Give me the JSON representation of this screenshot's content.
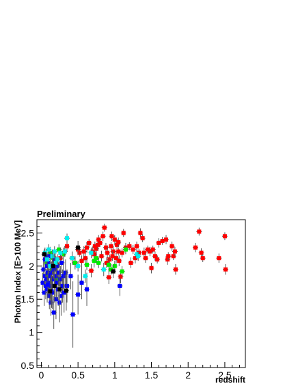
{
  "chart_data": {
    "type": "scatter",
    "title": "Preliminary",
    "xlabel": "redshift",
    "ylabel": "Photon Index [E>100 MeV]",
    "xlim": [
      -0.06,
      2.78
    ],
    "ylim": [
      0.47,
      2.7
    ],
    "x_ticks": [
      "0",
      "0.5",
      "1",
      "1.5",
      "2",
      "2.5"
    ],
    "y_ticks": [
      "0.5",
      "1",
      "1.5",
      "2",
      "2.5"
    ],
    "grid": false,
    "legend": "none",
    "colors": {
      "red": "#ff0000",
      "green": "#00ee00",
      "blue": "#0000ff",
      "cyan": "#00eeee",
      "black": "#000000"
    },
    "series": [
      {
        "color": "red",
        "points": [
          [
            0.22,
            2.02,
            0.06
          ],
          [
            0.26,
            2.12,
            0.07
          ],
          [
            0.32,
            2.22,
            0.08
          ],
          [
            0.35,
            2.3,
            0.08
          ],
          [
            0.42,
            2.12,
            0.1
          ],
          [
            0.46,
            2.05,
            0.08
          ],
          [
            0.5,
            2.25,
            0.07
          ],
          [
            0.52,
            2.2,
            0.06
          ],
          [
            0.55,
            2.08,
            0.08
          ],
          [
            0.6,
            2.12,
            0.07
          ],
          [
            0.62,
            2.28,
            0.08
          ],
          [
            0.65,
            2.35,
            0.06
          ],
          [
            0.68,
            1.93,
            0.1
          ],
          [
            0.7,
            2.22,
            0.07
          ],
          [
            0.72,
            2.18,
            0.06
          ],
          [
            0.73,
            2.3,
            0.07
          ],
          [
            0.75,
            2.26,
            0.08
          ],
          [
            0.77,
            2.32,
            0.08
          ],
          [
            0.78,
            2.4,
            0.07
          ],
          [
            0.8,
            2.35,
            0.06
          ],
          [
            0.82,
            2.15,
            0.08
          ],
          [
            0.84,
            2.45,
            0.07
          ],
          [
            0.86,
            2.58,
            0.06
          ],
          [
            0.88,
            2.28,
            0.07
          ],
          [
            0.89,
            2.05,
            0.08
          ],
          [
            0.9,
            2.2,
            0.08
          ],
          [
            0.92,
            1.83,
            0.1
          ],
          [
            0.93,
            2.1,
            0.07
          ],
          [
            0.95,
            2.3,
            0.06
          ],
          [
            0.96,
            2.45,
            0.07
          ],
          [
            0.98,
            2.22,
            0.08
          ],
          [
            1.0,
            2.4,
            0.07
          ],
          [
            1.02,
            2.12,
            0.08
          ],
          [
            1.03,
            2.32,
            0.06
          ],
          [
            1.05,
            2.36,
            0.07
          ],
          [
            1.06,
            2.08,
            0.08
          ],
          [
            1.08,
            1.84,
            0.1
          ],
          [
            1.1,
            2.2,
            0.07
          ],
          [
            1.12,
            2.5,
            0.06
          ],
          [
            1.15,
            2.28,
            0.07
          ],
          [
            1.2,
            2.3,
            0.06
          ],
          [
            1.22,
            2.05,
            0.08
          ],
          [
            1.25,
            2.25,
            0.07
          ],
          [
            1.28,
            2.12,
            0.08
          ],
          [
            1.3,
            2.3,
            0.07
          ],
          [
            1.33,
            2.2,
            0.06
          ],
          [
            1.35,
            2.5,
            0.07
          ],
          [
            1.38,
            2.42,
            0.06
          ],
          [
            1.4,
            2.2,
            0.08
          ],
          [
            1.42,
            2.12,
            0.07
          ],
          [
            1.45,
            2.25,
            0.06
          ],
          [
            1.48,
            2.22,
            0.07
          ],
          [
            1.5,
            1.97,
            0.08
          ],
          [
            1.52,
            2.25,
            0.06
          ],
          [
            1.55,
            2.15,
            0.07
          ],
          [
            1.58,
            2.1,
            0.06
          ],
          [
            1.6,
            2.35,
            0.07
          ],
          [
            1.65,
            2.38,
            0.06
          ],
          [
            1.7,
            2.4,
            0.07
          ],
          [
            1.72,
            2.1,
            0.08
          ],
          [
            1.73,
            2.15,
            0.06
          ],
          [
            1.78,
            2.3,
            0.07
          ],
          [
            1.8,
            2.15,
            0.06
          ],
          [
            1.82,
            2.22,
            0.07
          ],
          [
            1.83,
            1.95,
            0.08
          ],
          [
            2.1,
            2.28,
            0.07
          ],
          [
            2.15,
            2.52,
            0.06
          ],
          [
            2.18,
            2.2,
            0.07
          ],
          [
            2.2,
            2.12,
            0.06
          ],
          [
            2.42,
            2.12,
            0.07
          ],
          [
            2.5,
            2.45,
            0.06
          ],
          [
            2.51,
            1.95,
            0.08
          ],
          [
            1.05,
            2.22,
            0.06
          ],
          [
            0.97,
            2.15,
            0.07
          ],
          [
            0.58,
            2.22,
            0.08
          ]
        ]
      },
      {
        "color": "green",
        "points": [
          [
            0.07,
            2.05,
            0.08
          ],
          [
            0.1,
            1.85,
            0.1
          ],
          [
            0.12,
            2.2,
            0.09
          ],
          [
            0.14,
            1.95,
            0.12
          ],
          [
            0.16,
            2.12,
            0.1
          ],
          [
            0.18,
            2.05,
            0.08
          ],
          [
            0.2,
            1.8,
            0.15
          ],
          [
            0.22,
            2.0,
            0.1
          ],
          [
            0.24,
            2.25,
            0.08
          ],
          [
            0.3,
            2.18,
            0.1
          ],
          [
            0.46,
            2.05,
            0.1
          ],
          [
            0.62,
            2.02,
            0.08
          ],
          [
            0.72,
            2.08,
            0.1
          ],
          [
            0.75,
            2.12,
            0.08
          ],
          [
            0.78,
            2.05,
            0.08
          ],
          [
            0.92,
            2.02,
            0.1
          ],
          [
            0.95,
            1.95,
            0.08
          ],
          [
            1.0,
            2.0,
            0.08
          ],
          [
            1.1,
            1.92,
            0.08
          ],
          [
            1.15,
            2.25,
            0.07
          ]
        ]
      },
      {
        "color": "blue",
        "points": [
          [
            0.02,
            1.75,
            0.15
          ],
          [
            0.03,
            1.95,
            0.12
          ],
          [
            0.04,
            1.6,
            0.2
          ],
          [
            0.05,
            1.85,
            0.15
          ],
          [
            0.05,
            2.1,
            0.1
          ],
          [
            0.06,
            1.7,
            0.2
          ],
          [
            0.07,
            1.8,
            0.15
          ],
          [
            0.08,
            2.0,
            0.12
          ],
          [
            0.08,
            1.65,
            0.2
          ],
          [
            0.09,
            1.9,
            0.15
          ],
          [
            0.1,
            1.75,
            0.2
          ],
          [
            0.1,
            2.05,
            0.12
          ],
          [
            0.11,
            1.55,
            0.2
          ],
          [
            0.12,
            1.85,
            0.15
          ],
          [
            0.12,
            2.15,
            0.1
          ],
          [
            0.13,
            1.45,
            0.2
          ],
          [
            0.13,
            1.7,
            0.2
          ],
          [
            0.14,
            1.9,
            0.15
          ],
          [
            0.15,
            2.0,
            0.12
          ],
          [
            0.15,
            1.6,
            0.25
          ],
          [
            0.16,
            1.8,
            0.2
          ],
          [
            0.17,
            1.3,
            0.25
          ],
          [
            0.17,
            1.95,
            0.15
          ],
          [
            0.18,
            1.7,
            0.2
          ],
          [
            0.19,
            2.1,
            0.12
          ],
          [
            0.2,
            1.5,
            0.3
          ],
          [
            0.2,
            1.85,
            0.2
          ],
          [
            0.21,
            1.75,
            0.25
          ],
          [
            0.22,
            2.0,
            0.15
          ],
          [
            0.23,
            1.65,
            0.25
          ],
          [
            0.24,
            1.9,
            0.2
          ],
          [
            0.25,
            1.45,
            0.3
          ],
          [
            0.26,
            1.8,
            0.2
          ],
          [
            0.27,
            1.55,
            0.3
          ],
          [
            0.28,
            2.05,
            0.15
          ],
          [
            0.29,
            1.7,
            0.25
          ],
          [
            0.3,
            1.85,
            0.2
          ],
          [
            0.31,
            1.6,
            0.3
          ],
          [
            0.33,
            1.9,
            0.2
          ],
          [
            0.35,
            1.7,
            0.25
          ],
          [
            0.4,
            1.85,
            0.2
          ],
          [
            0.43,
            1.27,
            0.5
          ],
          [
            0.5,
            1.57,
            0.3
          ],
          [
            0.55,
            1.75,
            0.25
          ],
          [
            0.62,
            1.65,
            0.25
          ],
          [
            1.07,
            1.7,
            0.15
          ],
          [
            0.07,
            2.15,
            0.1
          ],
          [
            0.09,
            1.72,
            0.2
          ],
          [
            0.14,
            1.62,
            0.25
          ],
          [
            0.18,
            1.98,
            0.15
          ]
        ]
      },
      {
        "color": "cyan",
        "points": [
          [
            0.05,
            2.2,
            0.08
          ],
          [
            0.08,
            2.1,
            0.1
          ],
          [
            0.1,
            2.25,
            0.08
          ],
          [
            0.12,
            2.0,
            0.1
          ],
          [
            0.15,
            2.15,
            0.1
          ],
          [
            0.18,
            2.22,
            0.08
          ],
          [
            0.2,
            2.05,
            0.1
          ],
          [
            0.22,
            2.1,
            0.08
          ],
          [
            0.26,
            2.2,
            0.08
          ],
          [
            0.32,
            2.22,
            0.08
          ],
          [
            0.35,
            2.42,
            0.07
          ],
          [
            0.42,
            2.12,
            0.1
          ],
          [
            0.5,
            2.0,
            0.08
          ],
          [
            0.6,
            1.85,
            0.1
          ],
          [
            0.68,
            2.2,
            0.08
          ],
          [
            0.85,
            1.95,
            0.1
          ],
          [
            1.3,
            2.18,
            0.08
          ],
          [
            1.32,
            2.15,
            0.07
          ]
        ]
      },
      {
        "color": "black",
        "points": [
          [
            0.04,
            2.18,
            0.08
          ],
          [
            0.12,
            1.62,
            0.2
          ],
          [
            0.18,
            1.7,
            0.25
          ],
          [
            0.25,
            1.65,
            0.3
          ],
          [
            0.34,
            1.63,
            0.3
          ],
          [
            0.5,
            2.28,
            0.1
          ],
          [
            0.98,
            1.92,
            0.1
          ],
          [
            0.16,
            2.0,
            0.2
          ]
        ]
      }
    ]
  }
}
